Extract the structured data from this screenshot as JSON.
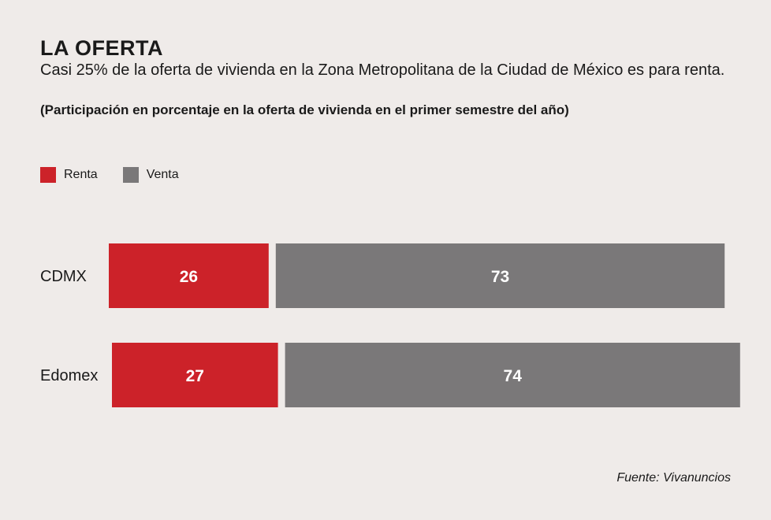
{
  "header": {
    "title": "LA OFERTA",
    "subtitle": "Casi 25% de la oferta de vivienda en la Zona Metropolitana de la Ciudad de México es para renta.",
    "note": "(Participación en porcentaje en la oferta de vivienda en el primer semestre del año)"
  },
  "colors": {
    "renta": "#cc2229",
    "venta": "#7a7879"
  },
  "chart_data": {
    "type": "bar",
    "orientation": "horizontal",
    "stacked": true,
    "categories": [
      "CDMX",
      "Edomex"
    ],
    "series": [
      {
        "name": "Renta",
        "values": [
          26,
          27
        ]
      },
      {
        "name": "Venta",
        "values": [
          73,
          74
        ]
      }
    ],
    "title": "LA OFERTA",
    "legend": "top-left",
    "grid": false
  },
  "source": "Fuente: Vivanuncios"
}
